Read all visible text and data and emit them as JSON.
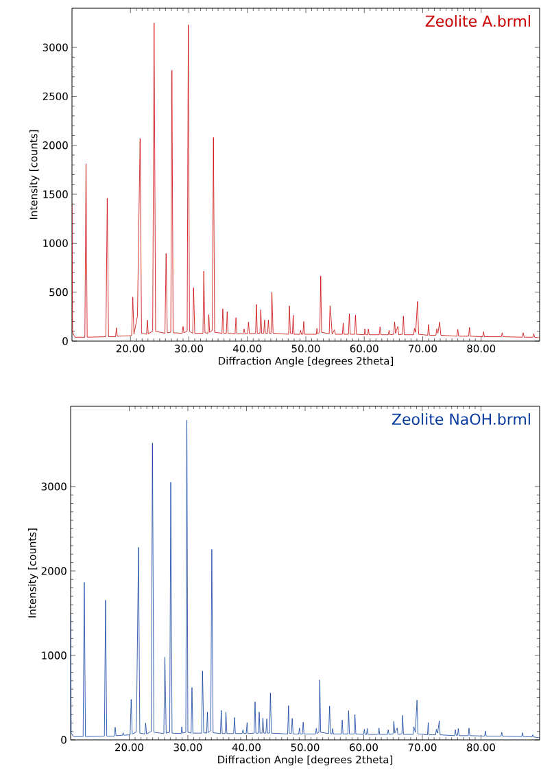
{
  "chart_data": [
    {
      "type": "line",
      "xlabel": "Diffraction Angle [degrees 2theta]",
      "ylabel": "Intensity [counts]",
      "xlim": [
        10,
        90
      ],
      "ylim": [
        0,
        3400
      ],
      "xticks": [
        {
          "value": 20,
          "label": "20.00"
        },
        {
          "value": 30,
          "label": "30.00"
        },
        {
          "value": 40,
          "label": "40.00"
        },
        {
          "value": 50,
          "label": "50.00"
        },
        {
          "value": 60,
          "label": "60.00"
        },
        {
          "value": 70,
          "label": "70.00"
        },
        {
          "value": 80,
          "label": "80.00"
        }
      ],
      "yticks": [
        0,
        500,
        1000,
        1500,
        2000,
        2500,
        3000
      ],
      "grid": false,
      "legend": false,
      "line_style": "solid",
      "series": [
        {
          "name": "Zeolite A.brml",
          "color": "#cc0000",
          "x": [
            10,
            10.1,
            10.5,
            12.2,
            12.4,
            12.6,
            15.8,
            16.03,
            16.25,
            17.45,
            17.6,
            17.75,
            20.2,
            20.4,
            20.6,
            21.2,
            21.65,
            21.9,
            22.75,
            22.9,
            23.05,
            23.8,
            24.05,
            24.3,
            25.9,
            26.1,
            26.3,
            26.9,
            27.1,
            27.3,
            28.85,
            29.0,
            29.15,
            29.7,
            29.9,
            30.1,
            30.65,
            30.8,
            31.0,
            32.4,
            32.55,
            32.75,
            33.25,
            33.4,
            33.55,
            34.0,
            34.2,
            34.4,
            35.65,
            35.8,
            35.95,
            36.4,
            36.55,
            36.7,
            37.9,
            38.05,
            38.2,
            39.3,
            39.45,
            39.6,
            40.05,
            40.2,
            40.35,
            41.4,
            41.55,
            41.7,
            42.15,
            42.3,
            42.45,
            42.8,
            42.95,
            43.1,
            43.45,
            43.6,
            43.75,
            44.05,
            44.2,
            44.4,
            47.05,
            47.2,
            47.35,
            47.7,
            47.85,
            48.0,
            49.0,
            49.1,
            49.25,
            49.5,
            49.65,
            49.8,
            51.8,
            51.9,
            52.0,
            52.4,
            52.55,
            52.7,
            54.0,
            54.15,
            54.35,
            54.5,
            54.9,
            55.05,
            56.25,
            56.4,
            56.55,
            57.3,
            57.45,
            57.6,
            58.35,
            58.5,
            58.65,
            60.0,
            60.1,
            60.25,
            60.6,
            60.7,
            60.85,
            62.55,
            62.7,
            62.85,
            64.1,
            64.25,
            64.4,
            65.05,
            65.2,
            65.35,
            65.75,
            65.9,
            66.55,
            66.7,
            66.85,
            68.45,
            68.6,
            68.8,
            69.1,
            69.3,
            70.85,
            71.0,
            71.15,
            72.25,
            72.4,
            72.6,
            72.9,
            73.1,
            75.85,
            76.0,
            76.15,
            77.85,
            78.0,
            78.15,
            80.25,
            80.4,
            80.55,
            83.45,
            83.6,
            83.75,
            87.05,
            87.2,
            87.35,
            88.85,
            89.0,
            89.15,
            90
          ],
          "values": [
            1400,
            90,
            40,
            40,
            1810,
            40,
            45,
            1460,
            45,
            45,
            135,
            50,
            55,
            450,
            70,
            255,
            2070,
            80,
            70,
            215,
            75,
            100,
            3250,
            100,
            80,
            895,
            85,
            90,
            2765,
            85,
            80,
            150,
            85,
            100,
            3230,
            100,
            80,
            545,
            80,
            80,
            715,
            85,
            80,
            270,
            90,
            110,
            2080,
            90,
            80,
            330,
            80,
            80,
            300,
            80,
            75,
            240,
            75,
            75,
            125,
            75,
            75,
            195,
            75,
            80,
            375,
            80,
            80,
            320,
            80,
            80,
            215,
            80,
            80,
            215,
            80,
            80,
            500,
            80,
            70,
            360,
            80,
            75,
            265,
            70,
            70,
            110,
            70,
            70,
            200,
            70,
            70,
            130,
            75,
            90,
            665,
            90,
            75,
            360,
            220,
            70,
            115,
            70,
            70,
            185,
            70,
            70,
            280,
            70,
            70,
            265,
            70,
            65,
            125,
            65,
            65,
            125,
            65,
            65,
            145,
            65,
            65,
            110,
            65,
            70,
            195,
            80,
            150,
            65,
            70,
            255,
            65,
            65,
            130,
            90,
            405,
            70,
            60,
            170,
            60,
            60,
            125,
            80,
            195,
            60,
            50,
            120,
            50,
            50,
            140,
            50,
            45,
            95,
            45,
            45,
            85,
            45,
            40,
            85,
            40,
            40,
            75,
            40,
            35
          ]
        }
      ]
    },
    {
      "type": "line",
      "xlabel": "Diffraction Angle [degrees 2theta]",
      "ylabel": "Intensity [counts]",
      "xlim": [
        10,
        90
      ],
      "ylim": [
        0,
        3950
      ],
      "xticks": [
        {
          "value": 20,
          "label": "20.00"
        },
        {
          "value": 30,
          "label": "30.00"
        },
        {
          "value": 40,
          "label": "40.00"
        },
        {
          "value": 50,
          "label": "50.00"
        },
        {
          "value": 60,
          "label": "60.00"
        },
        {
          "value": 70,
          "label": "70.00"
        },
        {
          "value": 80,
          "label": "80.00"
        }
      ],
      "yticks": [
        0,
        1000,
        2000,
        3000
      ],
      "grid": false,
      "legend": false,
      "line_style": "solid",
      "series": [
        {
          "name": "Zeolite NaOH.brml",
          "color": "#0a3d9e",
          "x": [
            10,
            10.1,
            10.5,
            12.13,
            12.33,
            12.53,
            15.76,
            15.96,
            16.16,
            17.45,
            17.6,
            17.75,
            18.85,
            18.96,
            19.1,
            20.15,
            20.33,
            20.5,
            21.15,
            21.25,
            21.58,
            21.8,
            22.65,
            22.8,
            22.95,
            23.75,
            23.96,
            24.2,
            25.9,
            26.08,
            26.3,
            26.9,
            27.08,
            27.3,
            28.85,
            28.96,
            29.1,
            29.65,
            29.83,
            30.0,
            30.55,
            30.7,
            30.85,
            32.35,
            32.5,
            32.7,
            33.2,
            33.33,
            33.45,
            33.9,
            34.08,
            34.3,
            35.55,
            35.7,
            35.85,
            36.35,
            36.5,
            36.65,
            37.8,
            37.96,
            38.1,
            39.25,
            39.4,
            39.55,
            39.95,
            40.1,
            40.25,
            41.3,
            41.46,
            41.6,
            42.02,
            42.17,
            42.3,
            42.65,
            42.8,
            42.95,
            43.3,
            43.46,
            43.6,
            43.93,
            44.08,
            44.25,
            47.02,
            47.17,
            47.3,
            47.65,
            47.8,
            47.95,
            48.9,
            49.04,
            49.15,
            49.52,
            49.67,
            49.8,
            51.78,
            51.9,
            52.02,
            52.35,
            52.5,
            52.65,
            54.02,
            54.17,
            54.32,
            54.58,
            54.7,
            54.82,
            56.2,
            56.33,
            56.46,
            57.28,
            57.42,
            57.56,
            58.35,
            58.5,
            58.65,
            59.98,
            60.1,
            60.22,
            60.48,
            60.6,
            60.72,
            62.48,
            62.6,
            62.72,
            64.05,
            64.17,
            64.3,
            65.0,
            65.13,
            65.3,
            65.7,
            65.82,
            66.5,
            66.63,
            66.78,
            68.42,
            68.54,
            68.8,
            69.08,
            69.25,
            70.87,
            71.0,
            71.13,
            72.26,
            72.38,
            72.6,
            72.88,
            73.02,
            75.5,
            75.63,
            75.76,
            76.0,
            76.13,
            76.26,
            77.83,
            77.96,
            78.1,
            80.62,
            80.75,
            80.88,
            83.41,
            83.54,
            83.67,
            86.95,
            87.08,
            87.21,
            88.7,
            88.83,
            88.96,
            90
          ],
          "values": [
            1490,
            80,
            40,
            40,
            1865,
            40,
            45,
            1655,
            45,
            45,
            150,
            50,
            55,
            85,
            55,
            60,
            480,
            70,
            90,
            280,
            2280,
            80,
            70,
            200,
            70,
            100,
            3515,
            90,
            75,
            980,
            80,
            90,
            3050,
            80,
            75,
            155,
            80,
            90,
            3785,
            90,
            80,
            620,
            80,
            80,
            815,
            85,
            80,
            330,
            85,
            110,
            2255,
            85,
            75,
            350,
            75,
            75,
            330,
            75,
            75,
            265,
            75,
            75,
            120,
            75,
            75,
            205,
            75,
            80,
            450,
            80,
            80,
            330,
            80,
            80,
            260,
            80,
            80,
            250,
            80,
            80,
            555,
            80,
            70,
            405,
            80,
            75,
            255,
            70,
            70,
            140,
            70,
            70,
            210,
            70,
            70,
            135,
            75,
            90,
            710,
            90,
            75,
            400,
            75,
            70,
            135,
            70,
            70,
            235,
            70,
            70,
            345,
            70,
            70,
            300,
            70,
            65,
            125,
            65,
            65,
            135,
            65,
            65,
            140,
            65,
            65,
            120,
            65,
            70,
            220,
            80,
            140,
            65,
            70,
            290,
            65,
            65,
            155,
            90,
            470,
            70,
            60,
            205,
            60,
            60,
            125,
            80,
            225,
            60,
            50,
            120,
            55,
            55,
            135,
            50,
            50,
            140,
            50,
            45,
            105,
            45,
            45,
            90,
            45,
            40,
            85,
            40,
            35,
            60,
            35,
            25
          ]
        }
      ]
    }
  ]
}
